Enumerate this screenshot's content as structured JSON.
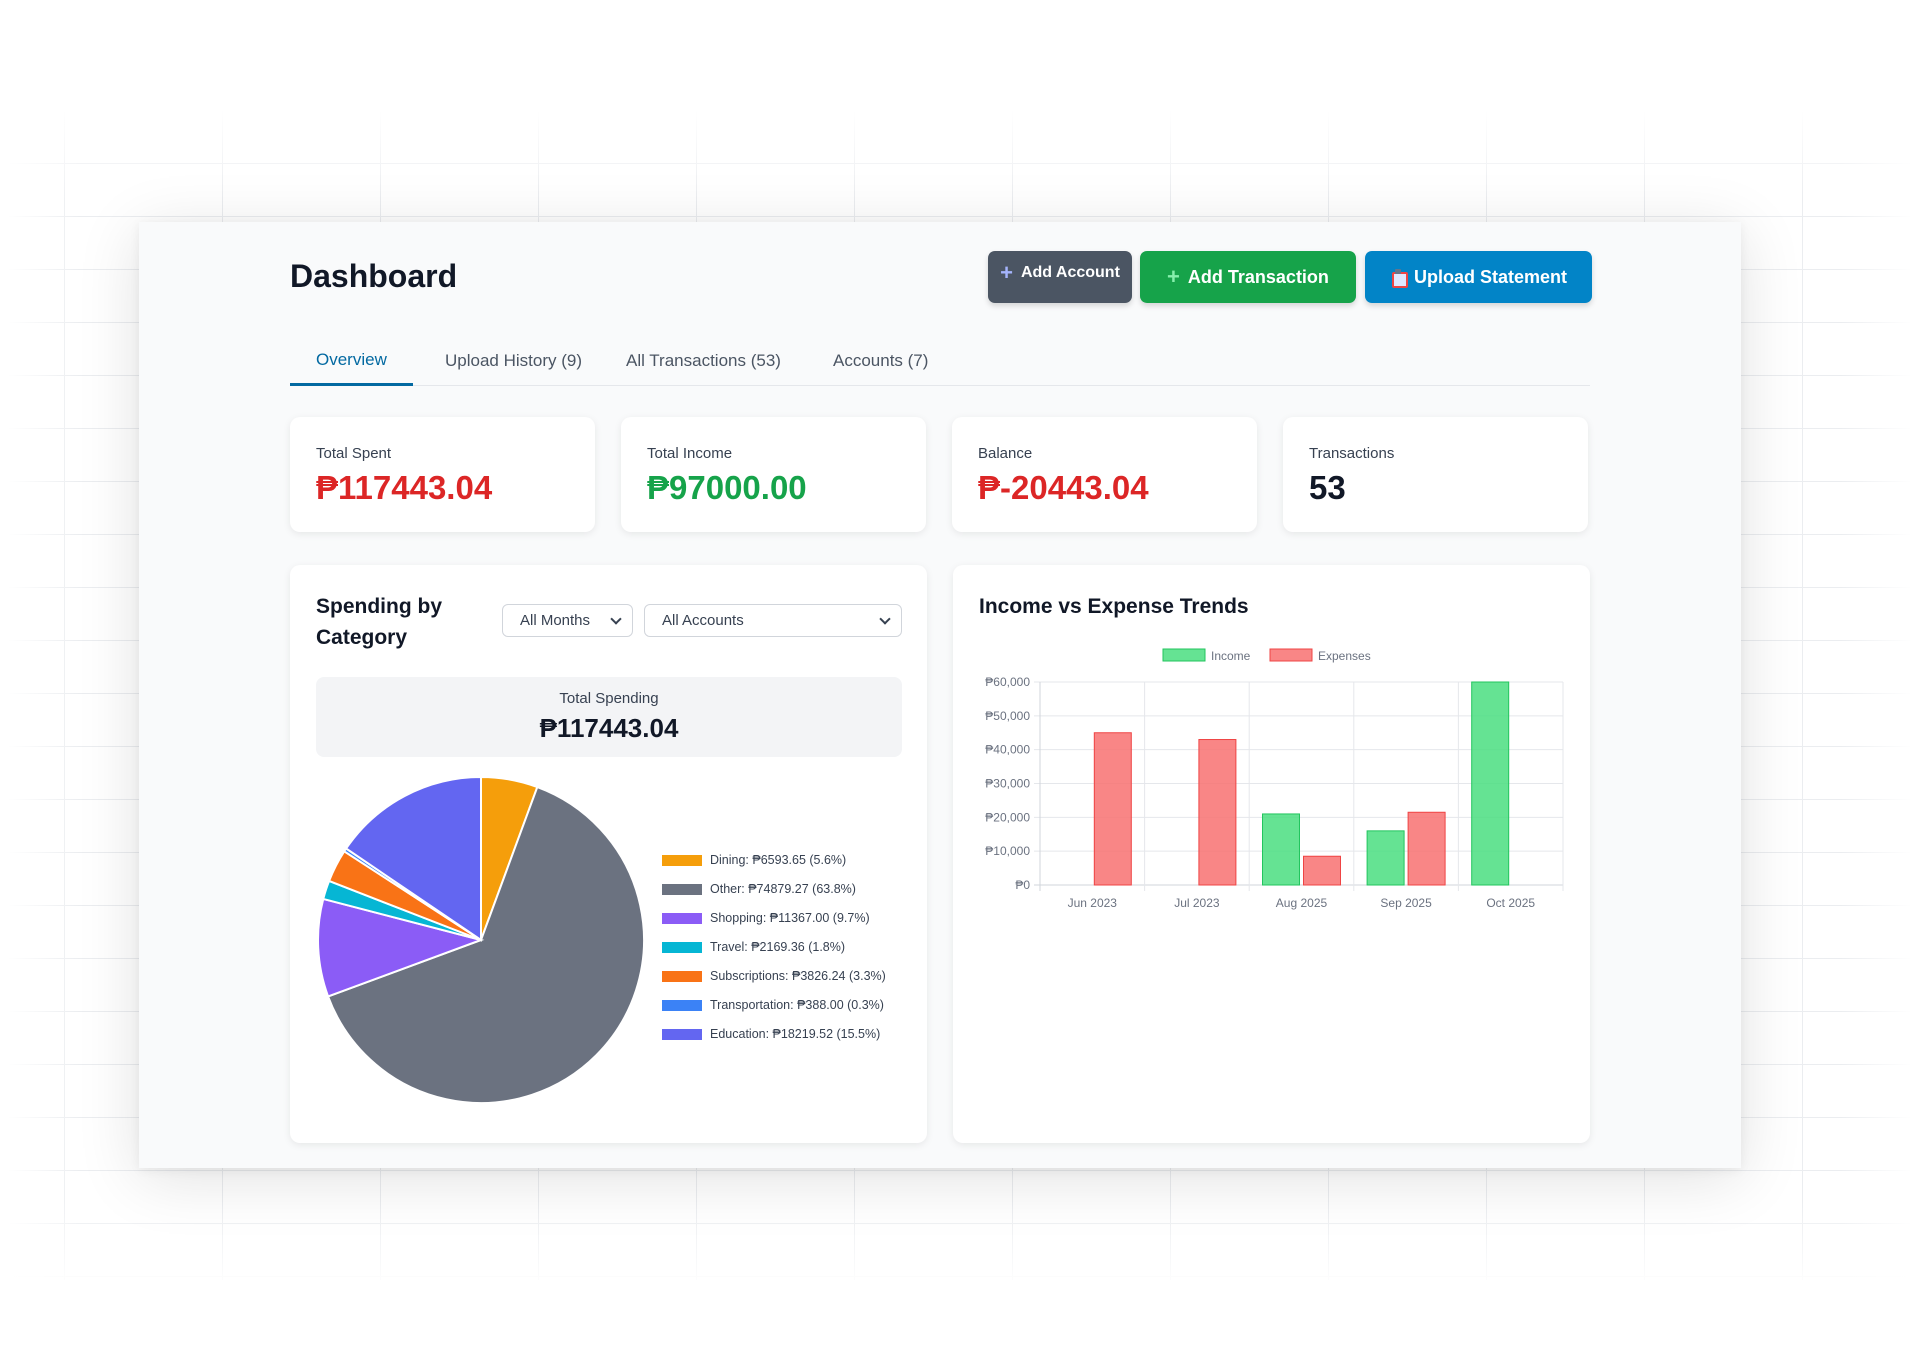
{
  "page": {
    "title": "Dashboard"
  },
  "header": {
    "add_account_label": "Add Account",
    "add_transaction_label": "Add Transaction",
    "upload_statement_label": "Upload Statement",
    "colors": {
      "add_account": "#4b5563",
      "add_transaction": "#16a34a",
      "upload_statement": "#0284c7"
    }
  },
  "tabs": [
    {
      "label": "Overview",
      "active": true
    },
    {
      "label": "Upload History (9)",
      "active": false
    },
    {
      "label": "All Transactions (53)",
      "active": false
    },
    {
      "label": "Accounts (7)",
      "active": false
    }
  ],
  "stats": [
    {
      "label": "Total Spent",
      "value": "₱117443.04",
      "color": "#dc2626"
    },
    {
      "label": "Total Income",
      "value": "₱97000.00",
      "color": "#16a34a"
    },
    {
      "label": "Balance",
      "value": "₱-20443.04",
      "color": "#dc2626"
    },
    {
      "label": "Transactions",
      "value": "53",
      "color": "#111827"
    }
  ],
  "spending": {
    "title": "Spending by Category",
    "months_select": "All Months",
    "accounts_select": "All Accounts",
    "total_label": "Total Spending",
    "total_value": "₱117443.04"
  },
  "trends": {
    "title": "Income vs Expense Trends"
  },
  "chart_data": [
    {
      "type": "pie",
      "slices": [
        {
          "label": "Dining: ₱6593.65 (5.6%)",
          "value": 6593.65,
          "color": "#f59e0b"
        },
        {
          "label": "Other: ₱74879.27 (63.8%)",
          "value": 74879.27,
          "color": "#6b7280"
        },
        {
          "label": "Shopping: ₱11367.00 (9.7%)",
          "value": 11367.0,
          "color": "#8b5cf6"
        },
        {
          "label": "Travel: ₱2169.36 (1.8%)",
          "value": 2169.36,
          "color": "#06b6d4"
        },
        {
          "label": "Subscriptions: ₱3826.24 (3.3%)",
          "value": 3826.24,
          "color": "#f97316"
        },
        {
          "label": "Transportation: ₱388.00 (0.3%)",
          "value": 388.0,
          "color": "#3b82f6"
        },
        {
          "label": "Education: ₱18219.52 (15.5%)",
          "value": 18219.52,
          "color": "#6366f1"
        }
      ]
    },
    {
      "type": "bar",
      "categories": [
        "Jun 2023",
        "Jul 2023",
        "Aug 2025",
        "Sep 2025",
        "Oct 2025"
      ],
      "series": [
        {
          "name": "Income",
          "values": [
            0,
            0,
            21000,
            16000,
            60000
          ],
          "color": "#4ade80"
        },
        {
          "name": "Expenses",
          "values": [
            45000,
            43000,
            8500,
            21500,
            0
          ],
          "color": "#f87171"
        }
      ],
      "ylim": [
        0,
        60000
      ],
      "yticks": [
        "₱0",
        "₱10,000",
        "₱20,000",
        "₱30,000",
        "₱40,000",
        "₱50,000",
        "₱60,000"
      ],
      "legend": "top-center",
      "grid": true
    }
  ]
}
